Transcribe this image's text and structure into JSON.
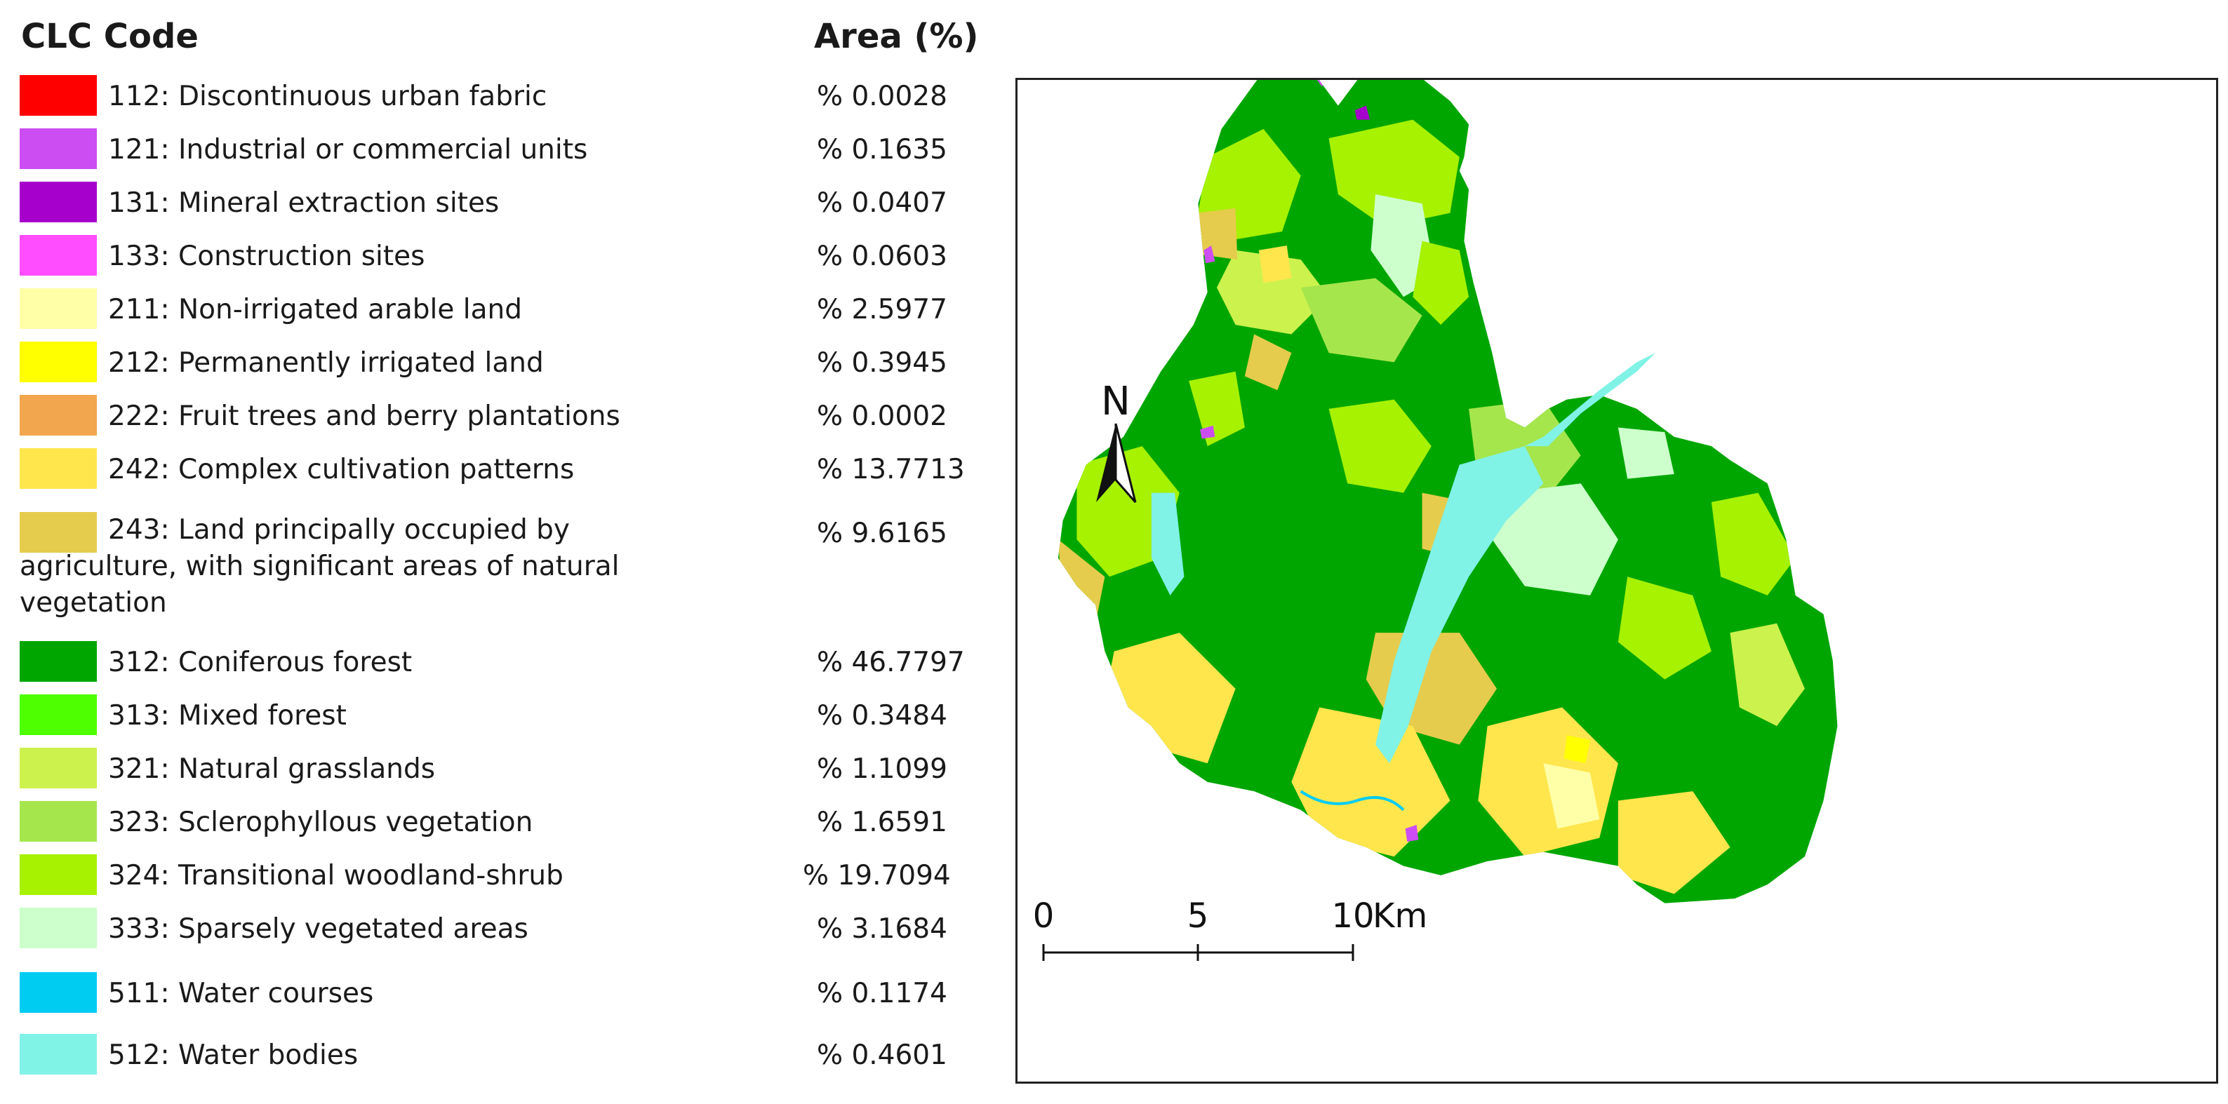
{
  "legend": {
    "header_code": "CLC Code",
    "header_area": "Area (%)",
    "items": [
      {
        "label": "112: Discontinuous urban fabric",
        "area": "% 0.0028",
        "color": "#ff0000"
      },
      {
        "label": "121: Industrial or commercial units",
        "area": "% 0.1635",
        "color": "#cc4df2"
      },
      {
        "label": "131: Mineral extraction sites",
        "area": "% 0.0407",
        "color": "#a600cc"
      },
      {
        "label": "133: Construction sites",
        "area": "% 0.0603",
        "color": "#ff4dff"
      },
      {
        "label": "211: Non-irrigated arable land",
        "area": "% 2.5977",
        "color": "#ffffa8"
      },
      {
        "label": "212: Permanently irrigated land",
        "area": "% 0.3945",
        "color": "#ffff00"
      },
      {
        "label": "222: Fruit trees and berry plantations",
        "area": "% 0.0002",
        "color": "#f2a64d"
      },
      {
        "label": "242: Complex cultivation patterns",
        "area": "% 13.7713",
        "color": "#ffe64d"
      },
      {
        "label": "243: Land principally occupied by agriculture, with significant areas of natural vegetation",
        "area": "% 9.6165",
        "color": "#e6cc4d"
      },
      {
        "label": "312: Coniferous forest",
        "area": "% 46.7797",
        "color": "#00a600"
      },
      {
        "label": "313: Mixed forest",
        "area": "% 0.3484",
        "color": "#4dff00"
      },
      {
        "label": "321: Natural grasslands",
        "area": "% 1.1099",
        "color": "#ccf24d"
      },
      {
        "label": "323: Sclerophyllous vegetation",
        "area": "% 1.6591",
        "color": "#a6e64d"
      },
      {
        "label": "324: Transitional woodland-shrub",
        "area": "% 19.7094",
        "color": "#a6f200"
      },
      {
        "label": "333: Sparsely vegetated areas",
        "area": "% 3.1684",
        "color": "#ccffcc"
      },
      {
        "label": "511: Water courses",
        "area": "% 0.1174",
        "color": "#00ccf2"
      },
      {
        "label": "512: Water bodies",
        "area": "% 0.4601",
        "color": "#80f2e6"
      }
    ]
  },
  "map": {
    "north_label": "N",
    "scale": {
      "tick_0": "0",
      "tick_1": "5",
      "tick_2": "10",
      "unit": "Km"
    }
  }
}
